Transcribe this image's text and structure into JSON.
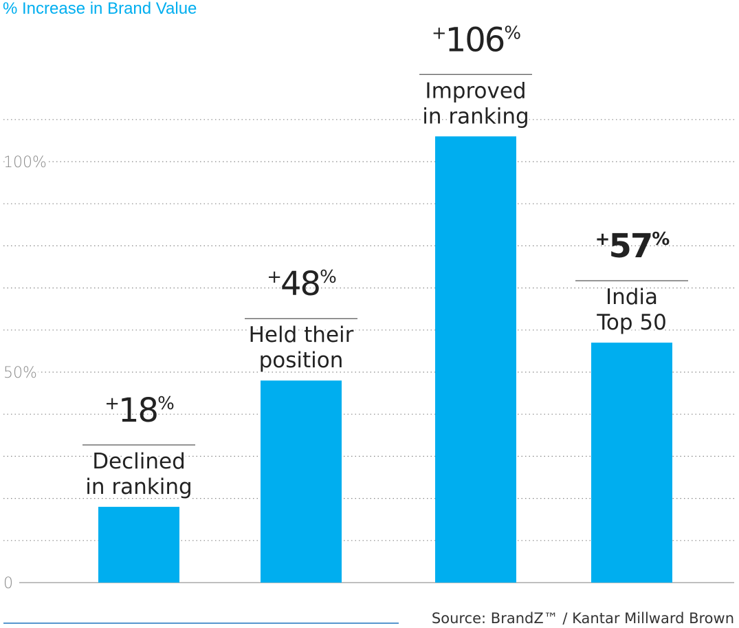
{
  "chart_data": {
    "type": "bar",
    "ylabel": "% Increase in Brand Value",
    "ylim": [
      0,
      125
    ],
    "yticks": [
      {
        "value": 0,
        "label": "0"
      },
      {
        "value": 50,
        "label": "50%"
      },
      {
        "value": 100,
        "label": "100%"
      }
    ],
    "grid_interval": 10,
    "grid": true,
    "bars": [
      {
        "category_lines": [
          "Declined",
          "in ranking"
        ],
        "value": 18,
        "prefix": "+",
        "number": "18",
        "suffix": "%",
        "bold": false
      },
      {
        "category_lines": [
          "Held their",
          "position"
        ],
        "value": 48,
        "prefix": "+",
        "number": "48",
        "suffix": "%",
        "bold": false
      },
      {
        "category_lines": [
          "Improved",
          "in ranking"
        ],
        "value": 106,
        "prefix": "+",
        "number": "106",
        "suffix": "%",
        "bold": false
      },
      {
        "category_lines": [
          "India",
          "Top 50"
        ],
        "value": 57,
        "prefix": "+",
        "number": "57",
        "suffix": "%",
        "bold": true
      }
    ],
    "bar_color": "#00aeef",
    "title_color": "#00aeef"
  },
  "source": "Source: BrandZ™ / Kantar Millward Brown"
}
